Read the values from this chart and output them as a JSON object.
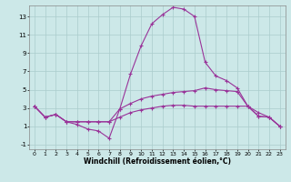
{
  "xlabel": "Windchill (Refroidissement éolien,°C)",
  "bg_color": "#cce8e8",
  "grid_color": "#aacccc",
  "line_color": "#993399",
  "xlim": [
    -0.5,
    23.5
  ],
  "ylim": [
    -1.5,
    14.2
  ],
  "xticks": [
    0,
    1,
    2,
    3,
    4,
    5,
    6,
    7,
    8,
    9,
    10,
    11,
    12,
    13,
    14,
    15,
    16,
    17,
    18,
    19,
    20,
    21,
    22,
    23
  ],
  "yticks": [
    -1,
    1,
    3,
    5,
    7,
    9,
    11,
    13
  ],
  "line1_x": [
    0,
    1,
    2,
    3,
    4,
    5,
    6,
    7,
    8,
    9,
    10,
    11,
    12,
    13,
    14,
    15,
    16,
    17,
    18,
    19,
    20,
    21,
    22,
    23
  ],
  "line1_y": [
    3.2,
    2.0,
    2.3,
    1.5,
    1.2,
    0.7,
    0.5,
    -0.3,
    2.9,
    6.7,
    9.8,
    12.2,
    13.2,
    14.0,
    13.8,
    13.0,
    8.0,
    6.5,
    6.0,
    5.2,
    3.2,
    2.1,
    2.0,
    1.0
  ],
  "line2_x": [
    0,
    1,
    2,
    3,
    4,
    5,
    6,
    7,
    8,
    9,
    10,
    11,
    12,
    13,
    14,
    15,
    16,
    17,
    18,
    19,
    20,
    21,
    22,
    23
  ],
  "line2_y": [
    3.2,
    2.0,
    2.3,
    1.5,
    1.5,
    1.5,
    1.5,
    1.5,
    2.0,
    2.5,
    2.8,
    3.0,
    3.2,
    3.3,
    3.3,
    3.2,
    3.2,
    3.2,
    3.2,
    3.2,
    3.2,
    2.5,
    2.0,
    1.0
  ],
  "line3_x": [
    0,
    1,
    2,
    3,
    4,
    5,
    6,
    7,
    8,
    9,
    10,
    11,
    12,
    13,
    14,
    15,
    16,
    17,
    18,
    19,
    20,
    21,
    22,
    23
  ],
  "line3_y": [
    3.2,
    2.0,
    2.3,
    1.5,
    1.5,
    1.5,
    1.5,
    1.5,
    2.9,
    3.5,
    4.0,
    4.3,
    4.5,
    4.7,
    4.8,
    4.9,
    5.2,
    5.0,
    4.9,
    4.8,
    3.2,
    2.1,
    2.0,
    1.0
  ],
  "figsize": [
    3.2,
    2.0
  ],
  "dpi": 100
}
